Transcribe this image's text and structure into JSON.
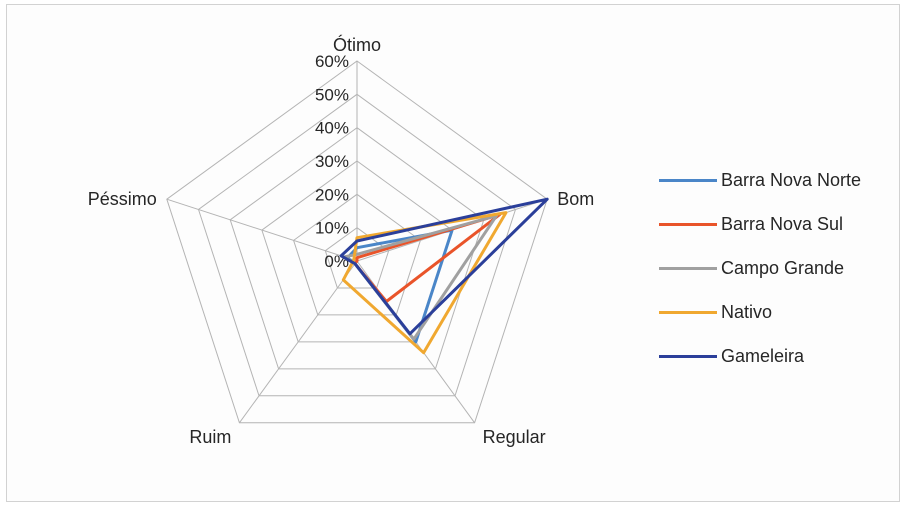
{
  "chart_data": {
    "type": "radar",
    "title": "",
    "categories": [
      "Ótimo",
      "Bom",
      "Regular",
      "Ruim",
      "Péssimo"
    ],
    "ylim": [
      0,
      60
    ],
    "tick_labels": [
      "0%",
      "10%",
      "20%",
      "30%",
      "40%",
      "50%",
      "60%"
    ],
    "grid": true,
    "legend_position": "right",
    "series": [
      {
        "name": "Barra Nova Norte",
        "color": "#4a86c8",
        "values": [
          4,
          30,
          30,
          1,
          3
        ]
      },
      {
        "name": "Barra Nova Sul",
        "color": "#e9542a",
        "values": [
          1,
          45,
          15,
          1,
          0
        ]
      },
      {
        "name": "Campo Grande",
        "color": "#a0a0a0",
        "values": [
          2,
          44,
          29,
          1,
          4
        ]
      },
      {
        "name": "Nativo",
        "color": "#f0a830",
        "values": [
          7,
          47,
          34,
          7,
          1
        ]
      },
      {
        "name": "Gameleira",
        "color": "#2b3f9a",
        "values": [
          6,
          60,
          27,
          1,
          5
        ]
      }
    ]
  }
}
